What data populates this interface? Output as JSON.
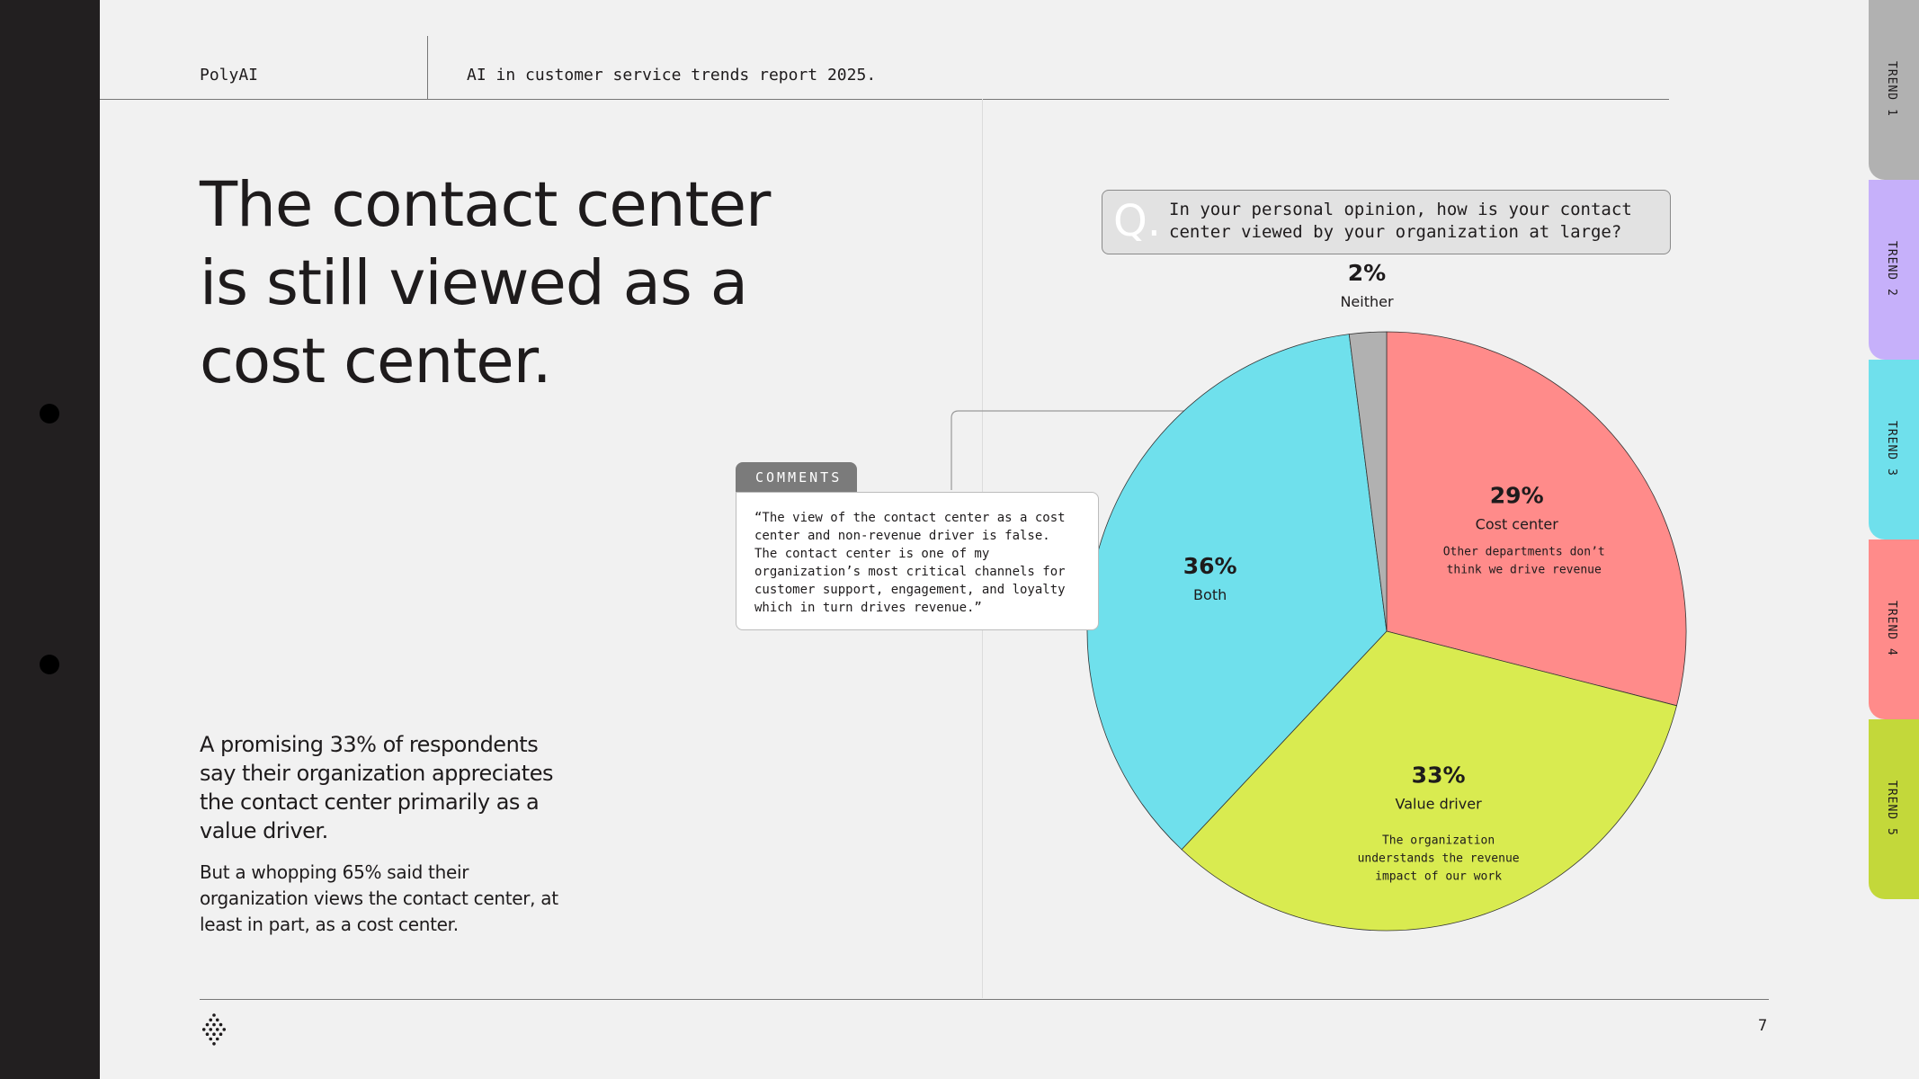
{
  "header": {
    "brand": "PolyAI",
    "report_title": "AI in customer service trends report 2025."
  },
  "headline": {
    "lines": [
      "The contact center",
      "is still viewed as a",
      "cost center."
    ]
  },
  "body": {
    "primary": "A promising 33% of respondents say their organization appreciates the contact center primarily as a value driver.",
    "secondary": "But a whopping 65% said their organization views the contact center, at least in part, as a cost center."
  },
  "question": {
    "mark": "Q.",
    "text": "In your personal opinion, how is your contact center viewed by your organization at large?"
  },
  "comments": {
    "label": "COMMENTS",
    "quote": "“The view of the contact center as a cost center and non-revenue driver is false. The contact center is one of my organization’s most critical channels for customer support, engagement, and loyalty which in turn drives revenue.”"
  },
  "chart_data": {
    "type": "pie",
    "slices": [
      {
        "label": "Cost center",
        "value": 29,
        "percent_label": "29%",
        "description": "Other departments don’t think we drive revenue",
        "color": "#ff8b8a"
      },
      {
        "label": "Value driver",
        "value": 33,
        "percent_label": "33%",
        "description": "The organization understands the revenue impact of our work",
        "color": "#d9eb50"
      },
      {
        "label": "Both",
        "value": 36,
        "percent_label": "36%",
        "description": "",
        "color": "#6fe0ec"
      },
      {
        "label": "Neither",
        "value": 2,
        "percent_label": "2%",
        "description": "",
        "color": "#b1b1b1"
      }
    ]
  },
  "tabs": [
    {
      "label": "TREND 1",
      "color": "#b1b1b1"
    },
    {
      "label": "TREND 2",
      "color": "#c6b0fa"
    },
    {
      "label": "TREND 3",
      "color": "#6fe0ec"
    },
    {
      "label": "TREND 4",
      "color": "#ff8b8a"
    },
    {
      "label": "TREND 5",
      "color": "#c3d83a"
    }
  ],
  "footer": {
    "page_number": "7",
    "logo": "polyai-dot-logo"
  }
}
